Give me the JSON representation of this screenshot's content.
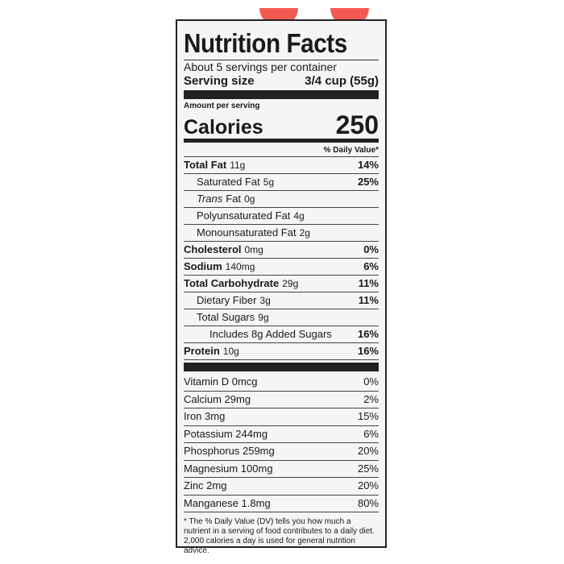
{
  "title": "Nutrition Facts",
  "servings": "About 5 servings per container",
  "serving_size": {
    "label": "Serving size",
    "value": "3/4 cup (55g)"
  },
  "amount_per_serving": "Amount per serving",
  "calories": {
    "label": "Calories",
    "value": "250"
  },
  "dv_header": "% Daily Value*",
  "nutrients": [
    {
      "name": "Total Fat",
      "amount": "11g",
      "dv": "14%",
      "bold": true,
      "indent": 0
    },
    {
      "name": "Saturated Fat",
      "amount": "5g",
      "dv": "25%",
      "bold": false,
      "indent": 1
    },
    {
      "italic": "Trans",
      "name": "Fat",
      "amount": "0g",
      "bold": false,
      "indent": 1
    },
    {
      "name": "Polyunsaturated Fat",
      "amount": "4g",
      "bold": false,
      "indent": 1
    },
    {
      "name": "Monounsaturated Fat",
      "amount": "2g",
      "bold": false,
      "indent": 1
    },
    {
      "name": "Cholesterol",
      "amount": "0mg",
      "dv": "0%",
      "bold": true,
      "indent": 0
    },
    {
      "name": "Sodium",
      "amount": "140mg",
      "dv": "6%",
      "bold": true,
      "indent": 0
    },
    {
      "name": "Total Carbohydrate",
      "amount": "29g",
      "dv": "11%",
      "bold": true,
      "indent": 0
    },
    {
      "name": "Dietary Fiber",
      "amount": "3g",
      "dv": "11%",
      "bold": false,
      "indent": 1
    },
    {
      "name": "Total Sugars",
      "amount": "9g",
      "bold": false,
      "indent": 1
    },
    {
      "name": "Includes 8g Added Sugars",
      "dv": "16%",
      "bold": false,
      "indent": 2
    },
    {
      "name": "Protein",
      "amount": "10g",
      "dv": "16%",
      "bold": true,
      "indent": 0
    }
  ],
  "micronutrients": [
    {
      "name": "Vitamin D 0mcg",
      "dv": "0%"
    },
    {
      "name": "Calcium 29mg",
      "dv": "2%"
    },
    {
      "name": "Iron 3mg",
      "dv": "15%"
    },
    {
      "name": "Potassium 244mg",
      "dv": "6%"
    },
    {
      "name": "Phosphorus 259mg",
      "dv": "20%"
    },
    {
      "name": "Magnesium 100mg",
      "dv": "25%"
    },
    {
      "name": "Zinc 2mg",
      "dv": "20%"
    },
    {
      "name": "Manganese 1.8mg",
      "dv": "80%"
    }
  ],
  "footnote": "* The % Daily Value (DV) tells you how much a nutrient in a serving of food contributes to a daily diet. 2,000 calories a day is used for general nutrition advice."
}
